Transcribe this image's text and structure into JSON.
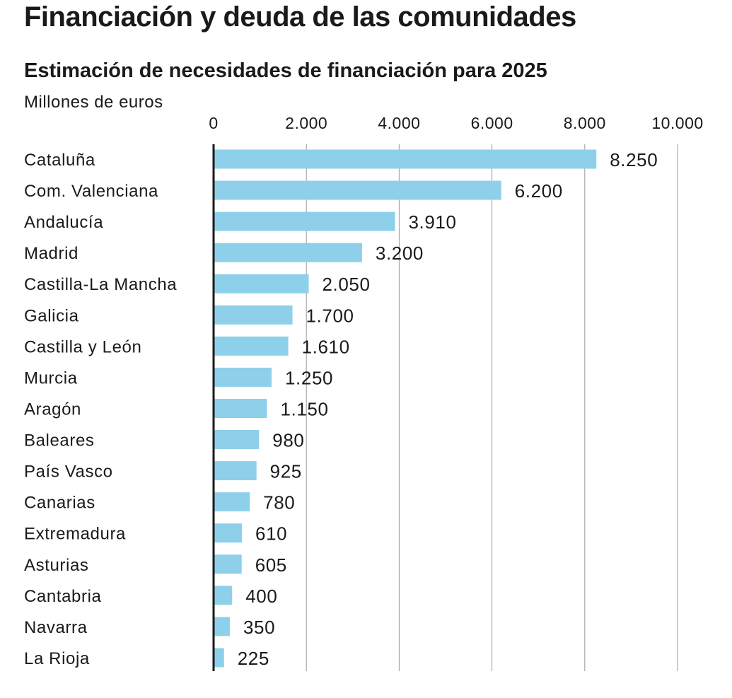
{
  "title": "Financiación y deuda de las comunidades",
  "subtitle": "Estimación de necesidades de financiación para 2025",
  "units": "Millones de euros",
  "chart_data": {
    "type": "bar",
    "orientation": "horizontal",
    "categories": [
      "Cataluña",
      "Com. Valenciana",
      "Andalucía",
      "Madrid",
      "Castilla-La Mancha",
      "Galicia",
      "Castilla y León",
      "Murcia",
      "Aragón",
      "Baleares",
      "País Vasco",
      "Canarias",
      "Extremadura",
      "Asturias",
      "Cantabria",
      "Navarra",
      "La Rioja"
    ],
    "values": [
      8250,
      6200,
      3910,
      3200,
      2050,
      1700,
      1610,
      1250,
      1150,
      980,
      925,
      780,
      610,
      605,
      400,
      350,
      225
    ],
    "value_labels": [
      "8.250",
      "6.200",
      "3.910",
      "3.200",
      "2.050",
      "1.700",
      "1.610",
      "1.250",
      "1.150",
      "980",
      "925",
      "780",
      "610",
      "605",
      "400",
      "350",
      "225"
    ],
    "xlim": [
      0,
      10000
    ],
    "xticks": [
      0,
      2000,
      4000,
      6000,
      8000,
      10000
    ],
    "xtick_labels": [
      "0",
      "2.000",
      "4.000",
      "6.000",
      "8.000",
      "10.000"
    ],
    "grid": true,
    "bar_color": "#8ed0ea",
    "axis_color": "#1a1a1a",
    "grid_color": "#9a9a9a"
  }
}
